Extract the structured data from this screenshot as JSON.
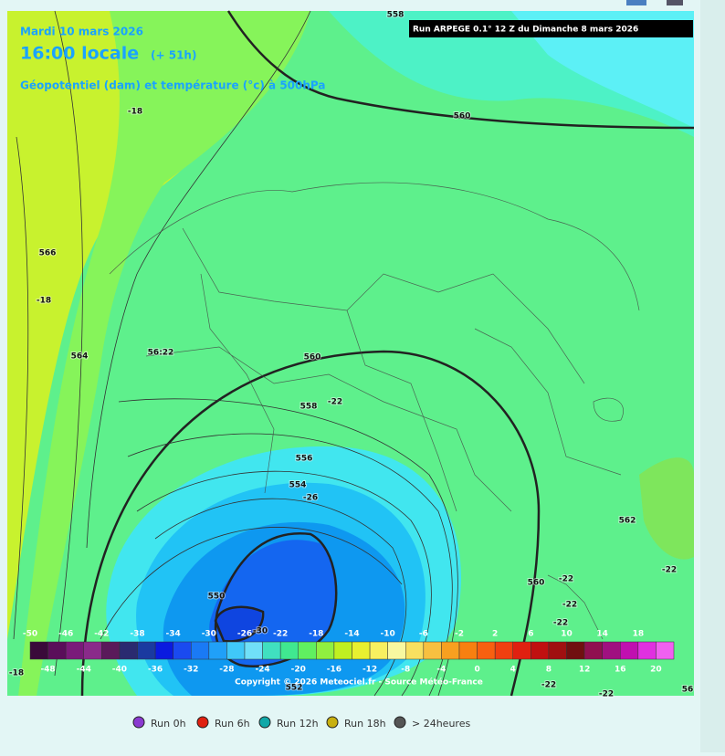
{
  "header": {
    "date": "Mardi 10 mars 2026",
    "time": "16:00 locale",
    "lead": "(+ 51h)",
    "field": "Géopotentiel (dam) et température (°c) à 500hPa",
    "run": "Run ARPEGE 0.1° 12 Z du Dimanche 8 mars 2026"
  },
  "contour_labels": [
    "558",
    "560",
    "-18",
    "566",
    "-18",
    "564",
    "56:22",
    "560",
    "558",
    "-22",
    "556",
    "554",
    "-26",
    "550",
    "-30",
    "552",
    "562",
    "560",
    "-22",
    "-22",
    "-22",
    "-22",
    "-22",
    "-22",
    "-18",
    "56"
  ],
  "scale": {
    "top_labels": [
      -50,
      -46,
      -42,
      -38,
      -34,
      -30,
      -26,
      -22,
      -18,
      -14,
      -10,
      -6,
      -2,
      2,
      6,
      10,
      14,
      18
    ],
    "bottom_labels": [
      -48,
      -44,
      -40,
      -36,
      -32,
      -28,
      -24,
      -20,
      -16,
      -12,
      -8,
      -4,
      0,
      4,
      8,
      12,
      16,
      20
    ]
  },
  "copyright": "Copyright © 2026 Meteociel.fr - Source Météo-France",
  "runs": [
    "Run 0h",
    "Run 6h",
    "Run 12h",
    "Run 18h",
    "> 24heures"
  ]
}
